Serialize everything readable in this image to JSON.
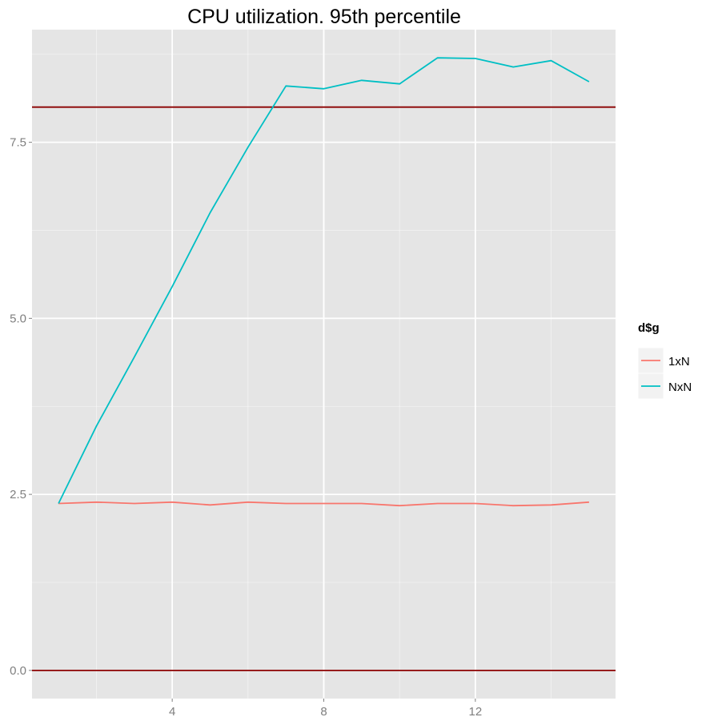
{
  "chart_data": {
    "type": "line",
    "title": "CPU utilization. 95th percentile",
    "xlabel": "",
    "ylabel": "",
    "xlim": [
      0.3,
      15.7
    ],
    "ylim": [
      -0.4,
      9.1
    ],
    "x_ticks": [
      4,
      8,
      12
    ],
    "x_tick_labels": [
      "4",
      "8",
      "12"
    ],
    "y_ticks": [
      0,
      2.5,
      5,
      7.5
    ],
    "y_tick_labels": [
      "0.0",
      "2.5",
      "5.0",
      "7.5"
    ],
    "x_minor_ticks": [
      2,
      6,
      10,
      14
    ],
    "y_minor_ticks": [
      1.25,
      3.75,
      6.25,
      8.75
    ],
    "grid": true,
    "panel_background": "#e5e5e5",
    "grid_color": "#ffffff",
    "legend": {
      "title": "d$g",
      "placement": "right"
    },
    "x": [
      1,
      2,
      3,
      4,
      5,
      6,
      7,
      8,
      9,
      10,
      11,
      12,
      13,
      14,
      15
    ],
    "series": [
      {
        "name": "1xN",
        "color": "#f8766d",
        "values": [
          2.37,
          2.39,
          2.37,
          2.39,
          2.35,
          2.39,
          2.37,
          2.37,
          2.37,
          2.34,
          2.37,
          2.37,
          2.34,
          2.35,
          2.39
        ]
      },
      {
        "name": "NxN",
        "color": "#00bfc4",
        "values": [
          2.37,
          3.47,
          4.45,
          5.45,
          6.5,
          7.43,
          8.3,
          8.26,
          8.38,
          8.33,
          8.7,
          8.69,
          8.57,
          8.66,
          8.36
        ]
      }
    ],
    "reference_lines": [
      {
        "y": 0,
        "color": "#8b0000"
      },
      {
        "y": 8,
        "color": "#8b0000"
      }
    ]
  }
}
